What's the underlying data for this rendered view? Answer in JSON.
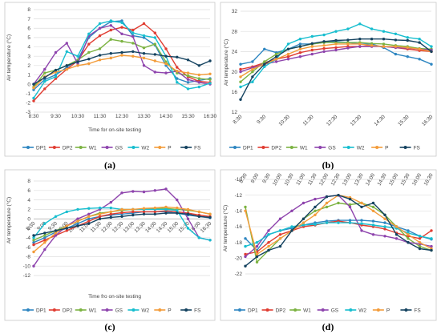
{
  "legend_names": [
    "DP1",
    "DP2",
    "W1",
    "GS",
    "W2",
    "P",
    "FS"
  ],
  "series_colors": [
    "#2E86C1",
    "#E03C31",
    "#7CB342",
    "#8E44AD",
    "#17BECF",
    "#F39C3A",
    "#154360"
  ],
  "chart_data": [
    {
      "type": "line",
      "panel_label": "(a)",
      "title": "",
      "xlabel": "Time for on-site testing",
      "ylabel": "Air temperature (°C)",
      "ylim": [
        -3,
        8
      ],
      "yticks": [
        -3,
        -2,
        -1,
        0,
        1,
        2,
        3,
        4,
        5,
        6,
        7,
        8
      ],
      "grid": "horizontal",
      "legend_position": "bottom",
      "x_tick_labels": [
        "8:30",
        "9:30",
        "10:30",
        "11:30",
        "12:30",
        "13:30",
        "14:30",
        "15:30",
        "16:30"
      ],
      "x_tick_positions": [
        0,
        2,
        4,
        6,
        8,
        10,
        12,
        14,
        16
      ],
      "x": [
        "8:30",
        "9:00",
        "9:30",
        "10:00",
        "10:30",
        "11:00",
        "11:30",
        "12:00",
        "12:30",
        "13:00",
        "13:30",
        "14:00",
        "14:30",
        "15:00",
        "15:30",
        "16:00",
        "16:30"
      ],
      "series": [
        {
          "name": "DP1",
          "values": [
            -0.6,
            0.5,
            1.0,
            1.8,
            2.6,
            5.0,
            6.0,
            6.7,
            6.8,
            5.2,
            5.0,
            4.2,
            2.0,
            0.6,
            0.2,
            0.4,
            0.6
          ]
        },
        {
          "name": "DP2",
          "values": [
            -1.8,
            -0.5,
            0.6,
            1.6,
            2.5,
            4.3,
            5.2,
            5.8,
            6.1,
            5.8,
            6.5,
            5.5,
            3.8,
            1.8,
            0.8,
            0.3,
            0.2
          ]
        },
        {
          "name": "W1",
          "values": [
            -0.3,
            1.2,
            1.5,
            2.0,
            2.6,
            3.4,
            3.8,
            4.8,
            4.6,
            4.4,
            3.9,
            4.3,
            2.4,
            1.2,
            0.9,
            0.6,
            0.5
          ]
        },
        {
          "name": "GS",
          "values": [
            0.0,
            1.6,
            3.4,
            4.4,
            2.2,
            5.2,
            6.0,
            6.3,
            5.4,
            5.1,
            2.0,
            1.3,
            1.2,
            1.4,
            0.5,
            0.2,
            0.0
          ]
        },
        {
          "name": "W2",
          "values": [
            -1.5,
            0.3,
            0.8,
            3.5,
            3.0,
            5.4,
            6.5,
            6.8,
            6.6,
            5.5,
            5.2,
            5.0,
            3.0,
            0.2,
            -0.5,
            -0.3,
            0.1
          ]
        },
        {
          "name": "P",
          "values": [
            -0.4,
            0.8,
            1.3,
            1.6,
            2.0,
            2.2,
            2.6,
            2.8,
            3.1,
            3.0,
            2.8,
            2.5,
            2.2,
            1.4,
            1.2,
            1.0,
            1.1
          ]
        },
        {
          "name": "FS",
          "values": [
            0.0,
            0.7,
            1.5,
            2.0,
            2.4,
            2.7,
            3.1,
            3.3,
            3.4,
            3.5,
            3.3,
            3.2,
            3.0,
            2.9,
            2.6,
            2.0,
            2.5
          ]
        }
      ]
    },
    {
      "type": "line",
      "panel_label": "(b)",
      "title": "",
      "xlabel": "",
      "ylabel": "Air temperature (°C)",
      "ylim": [
        12,
        32
      ],
      "yticks": [
        12,
        16,
        20,
        24,
        28,
        32
      ],
      "grid": "horizontal",
      "legend_position": "bottom",
      "x_tick_labels": [
        "8:30",
        "9:30",
        "10:30",
        "11:30",
        "12:30",
        "13:30",
        "14:30",
        "15:30",
        "16:30"
      ],
      "x_tick_positions": [
        0,
        2,
        4,
        6,
        8,
        10,
        12,
        14,
        16
      ],
      "x": [
        "8:30",
        "9:00",
        "9:30",
        "10:00",
        "10:30",
        "11:00",
        "11:30",
        "12:00",
        "12:30",
        "13:00",
        "13:30",
        "14:00",
        "14:30",
        "15:00",
        "15:30",
        "16:00",
        "16:30"
      ],
      "series": [
        {
          "name": "DP1",
          "values": [
            21.5,
            22.0,
            24.5,
            23.8,
            24.5,
            25.5,
            25.5,
            25.8,
            26.0,
            25.8,
            25.5,
            25.5,
            24.8,
            23.5,
            23.0,
            22.5,
            21.5
          ]
        },
        {
          "name": "DP2",
          "values": [
            20.5,
            21.0,
            21.8,
            22.5,
            23.0,
            23.8,
            24.3,
            24.6,
            24.8,
            25.0,
            25.0,
            25.2,
            25.0,
            24.8,
            24.5,
            24.2,
            24.0
          ]
        },
        {
          "name": "W1",
          "values": [
            18.0,
            20.0,
            22.0,
            23.5,
            24.5,
            25.0,
            25.5,
            25.8,
            25.8,
            25.8,
            25.8,
            25.6,
            25.5,
            25.2,
            25.0,
            24.6,
            24.5
          ]
        },
        {
          "name": "GS",
          "values": [
            20.0,
            20.8,
            21.5,
            22.0,
            22.5,
            23.0,
            23.5,
            24.0,
            24.3,
            24.7,
            25.0,
            25.0,
            25.0,
            24.8,
            24.7,
            24.5,
            24.3
          ]
        },
        {
          "name": "W2",
          "values": [
            17.0,
            18.0,
            21.0,
            22.5,
            25.5,
            26.5,
            27.0,
            27.3,
            28.0,
            28.5,
            29.5,
            28.5,
            28.0,
            27.5,
            26.8,
            26.5,
            25.0
          ]
        },
        {
          "name": "P",
          "values": [
            19.0,
            20.5,
            21.5,
            22.5,
            23.5,
            24.5,
            25.0,
            25.2,
            25.5,
            25.5,
            25.5,
            25.2,
            25.0,
            25.0,
            24.8,
            24.5,
            24.0
          ]
        },
        {
          "name": "FS",
          "values": [
            14.5,
            19.0,
            21.5,
            23.0,
            24.5,
            25.0,
            25.6,
            26.0,
            26.2,
            26.3,
            26.5,
            26.5,
            26.5,
            26.3,
            26.2,
            25.8,
            24.0
          ]
        }
      ]
    },
    {
      "type": "line",
      "panel_label": "(c)",
      "title": "",
      "xlabel": "Time fro on-site testing",
      "ylabel": "Air temperature (°C)",
      "ylim": [
        -12,
        8
      ],
      "yticks": [
        -12,
        -10,
        -8,
        -6,
        -4,
        -2,
        0,
        2,
        4,
        6,
        8
      ],
      "grid": "horizontal",
      "legend_position": "bottom",
      "x_tick_labels": [
        "8:30",
        "9:00",
        "9:30",
        "10:00",
        "10:30",
        "11:00",
        "11:30",
        "12:00",
        "12:30",
        "13:00",
        "13:30",
        "14:00",
        "14:30",
        "15:00",
        "15:30",
        "16:00",
        "16:30"
      ],
      "x_tick_positions": [
        0,
        1,
        2,
        3,
        4,
        5,
        6,
        7,
        8,
        9,
        10,
        11,
        12,
        13,
        14,
        15,
        16
      ],
      "x": [
        "8:30",
        "9:00",
        "9:30",
        "10:00",
        "10:30",
        "11:00",
        "11:30",
        "12:00",
        "12:30",
        "13:00",
        "13:30",
        "14:00",
        "14:30",
        "15:00",
        "15:30",
        "16:00",
        "16:30"
      ],
      "series": [
        {
          "name": "DP1",
          "values": [
            -5.0,
            -4.0,
            -2.8,
            -2.0,
            -1.0,
            0.0,
            0.5,
            0.8,
            1.0,
            1.2,
            1.5,
            1.5,
            1.5,
            1.2,
            0.8,
            0.5,
            0.2
          ]
        },
        {
          "name": "DP2",
          "values": [
            -5.5,
            -4.5,
            -3.5,
            -2.5,
            -1.5,
            -0.5,
            0.5,
            1.0,
            1.3,
            1.5,
            1.5,
            1.5,
            1.7,
            1.5,
            1.2,
            0.8,
            0.5
          ]
        },
        {
          "name": "W1",
          "values": [
            -4.5,
            -3.5,
            -2.5,
            -1.5,
            -0.5,
            0.5,
            1.2,
            1.5,
            1.8,
            2.0,
            2.0,
            2.2,
            2.2,
            2.0,
            1.8,
            1.5,
            1.0
          ]
        },
        {
          "name": "GS",
          "values": [
            -10.0,
            -6.5,
            -3.5,
            -1.5,
            0.0,
            1.0,
            2.0,
            3.5,
            5.5,
            5.8,
            5.7,
            6.0,
            6.3,
            4.0,
            0.0,
            -4.0,
            -4.5
          ]
        },
        {
          "name": "W2",
          "values": [
            -4.0,
            -1.0,
            0.5,
            1.5,
            2.0,
            2.2,
            2.3,
            2.3,
            2.0,
            2.0,
            2.0,
            2.0,
            2.0,
            1.8,
            -2.0,
            -4.0,
            -4.5
          ]
        },
        {
          "name": "P",
          "values": [
            -7.0,
            -5.0,
            -3.0,
            -1.5,
            -0.5,
            0.5,
            1.0,
            1.5,
            2.0,
            2.0,
            2.2,
            2.3,
            2.5,
            2.3,
            2.0,
            1.5,
            1.0
          ]
        },
        {
          "name": "FS",
          "values": [
            -3.5,
            -3.0,
            -2.5,
            -2.0,
            -1.5,
            -1.0,
            0.0,
            0.3,
            0.5,
            0.8,
            1.0,
            1.0,
            1.2,
            1.2,
            1.0,
            0.5,
            0.3
          ]
        }
      ]
    },
    {
      "type": "line",
      "panel_label": "(d)",
      "title": "",
      "xlabel": "",
      "ylabel": "Air temperature (°C)",
      "ylim": [
        -22,
        -10
      ],
      "yticks": [
        -22,
        -20,
        -18,
        -16,
        -14,
        -12,
        -10
      ],
      "grid": "horizontal",
      "legend_position": "bottom",
      "x_axis_position": "top",
      "x_tick_labels": [
        "8:30",
        "9:00",
        "9:30",
        "10:00",
        "10:30",
        "11:00",
        "11:30",
        "12:00",
        "12:30",
        "13:00",
        "13:30",
        "14:00",
        "14:30",
        "15:00",
        "15:30",
        "16:00",
        "16:30"
      ],
      "x_tick_positions": [
        0,
        1,
        2,
        3,
        4,
        5,
        6,
        7,
        8,
        9,
        10,
        11,
        12,
        13,
        14,
        15,
        16
      ],
      "x": [
        "8:30",
        "9:00",
        "9:30",
        "10:00",
        "10:30",
        "11:00",
        "11:30",
        "12:00",
        "12:30",
        "13:00",
        "13:30",
        "14:00",
        "14:30",
        "15:00",
        "15:30",
        "16:00",
        "16:30"
      ],
      "series": [
        {
          "name": "DP1",
          "values": [
            -17.5,
            -19.0,
            -17.0,
            -16.5,
            -16.2,
            -15.8,
            -15.5,
            -15.3,
            -15.2,
            -15.2,
            -15.2,
            -15.3,
            -15.5,
            -16.0,
            -16.5,
            -17.2,
            -17.6
          ]
        },
        {
          "name": "DP2",
          "values": [
            -19.5,
            -19.2,
            -18.0,
            -17.0,
            -16.5,
            -16.0,
            -15.8,
            -15.5,
            -15.3,
            -15.5,
            -15.8,
            -16.0,
            -16.3,
            -16.8,
            -17.2,
            -17.5,
            -16.5
          ]
        },
        {
          "name": "W1",
          "values": [
            -13.5,
            -20.5,
            -19.0,
            -17.5,
            -16.5,
            -15.0,
            -14.0,
            -13.5,
            -13.0,
            -13.2,
            -13.0,
            -13.5,
            -14.5,
            -16.0,
            -17.5,
            -18.5,
            -19.0
          ]
        },
        {
          "name": "GS",
          "values": [
            -19.8,
            -18.5,
            -16.5,
            -15.0,
            -14.0,
            -13.0,
            -12.5,
            -12.2,
            -12.0,
            -13.5,
            -16.5,
            -17.0,
            -17.2,
            -17.5,
            -18.0,
            -18.2,
            -18.5
          ]
        },
        {
          "name": "W2",
          "values": [
            -18.5,
            -18.0,
            -17.0,
            -16.5,
            -16.0,
            -15.8,
            -15.7,
            -15.5,
            -15.5,
            -15.5,
            -15.6,
            -15.8,
            -16.0,
            -16.2,
            -16.8,
            -17.2,
            -17.5
          ]
        },
        {
          "name": "P",
          "values": [
            -14.0,
            -19.5,
            -18.5,
            -17.5,
            -16.5,
            -15.5,
            -14.5,
            -13.0,
            -12.0,
            -12.3,
            -13.0,
            -14.0,
            -15.0,
            -16.0,
            -17.0,
            -18.0,
            -18.8
          ]
        },
        {
          "name": "FS",
          "values": [
            -21.0,
            -19.8,
            -19.0,
            -18.5,
            -16.5,
            -15.0,
            -13.5,
            -12.2,
            -12.0,
            -12.5,
            -13.5,
            -13.0,
            -14.5,
            -17.0,
            -18.0,
            -18.8,
            -19.0
          ]
        }
      ]
    }
  ]
}
